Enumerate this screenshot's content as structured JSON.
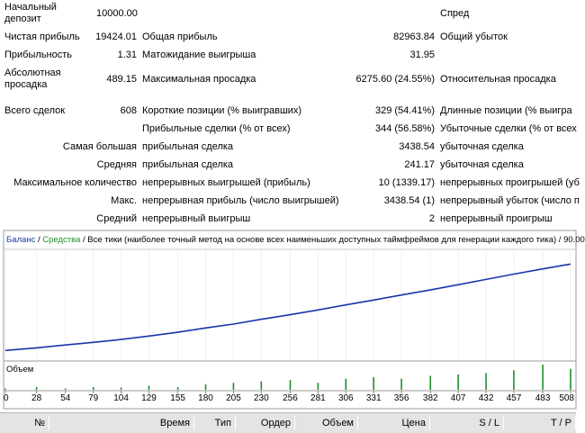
{
  "stats": {
    "initial_deposit": {
      "label_line1": "Начальный",
      "label_line2": "депозит",
      "value": "10000.00"
    },
    "spread": {
      "label": "Спред"
    },
    "net_profit": {
      "label": "Чистая прибыль",
      "value": "19424.01"
    },
    "gross_profit": {
      "label": "Общая прибыль",
      "value": "82963.84"
    },
    "gross_loss": {
      "label": "Общий убыток"
    },
    "profit_factor": {
      "label": "Прибыльность",
      "value": "1.31"
    },
    "expected_payoff": {
      "label": "Матожидание выигрыша",
      "value": "31.95"
    },
    "absolute_drawdown": {
      "label_line1": "Абсолютная",
      "label_line2": "просадка",
      "value": "489.15"
    },
    "maximal_drawdown": {
      "label": "Максимальная просадка",
      "value": "6275.60 (24.55%)"
    },
    "relative_drawdown": {
      "label": "Относительная просадка"
    },
    "total_trades": {
      "label": "Всего сделок",
      "value": "608"
    },
    "short_positions": {
      "label": "Короткие позиции (% выигравших)",
      "value": "329 (54.41%)"
    },
    "long_positions": {
      "label": "Длинные позиции (% выигра"
    },
    "profit_trades": {
      "label": "Прибыльные сделки (% от всех)",
      "value": "344 (56.58%)"
    },
    "loss_trades": {
      "label": "Убыточные сделки (% от всех"
    },
    "largest": {
      "label": "Самая большая",
      "sub": "прибыльная сделка",
      "value": "3438.54",
      "right": "убыточная сделка"
    },
    "average": {
      "label": "Средняя",
      "sub": "прибыльная сделка",
      "value": "241.17",
      "right": "убыточная сделка"
    },
    "max_consecutive": {
      "label": "Максимальное количество",
      "sub": "непрерывных выигрышей (прибыль)",
      "value": "10 (1339.17)",
      "right": "непрерывных проигрышей (уб"
    },
    "max_streak": {
      "label": "Макс.",
      "sub": "непрерывная прибыль (число выигрышей)",
      "value": "3438.54 (1)",
      "right": "непрерывный убыток (число п"
    },
    "average_streak": {
      "label": "Средний",
      "sub": "непрерывный выигрыш",
      "value": "2",
      "right": "непрерывный проигрыш"
    }
  },
  "graph": {
    "legend_balance": "Баланс",
    "legend_sep1": " / ",
    "legend_equity": "Средства",
    "legend_rest": " / Все тики (наиболее точный метод на основе всех наименьших доступных таймфреймов для генерации каждого тика) / 90.00",
    "volume_label": "Объем",
    "balance_color": "#1a35a8",
    "equity_color": "#1e8f2a"
  },
  "chart_data": {
    "type": "line",
    "series": [],
    "x_ticks": [
      "0",
      "28",
      "54",
      "79",
      "104",
      "129",
      "155",
      "180",
      "205",
      "230",
      "256",
      "281",
      "306",
      "331",
      "356",
      "382",
      "407",
      "432",
      "457",
      "483",
      "508"
    ],
    "xlim": [
      0,
      508
    ],
    "balance": {
      "x": [
        0,
        28,
        54,
        79,
        104,
        129,
        155,
        180,
        205,
        230,
        256,
        281,
        306,
        331,
        356,
        382,
        407,
        432,
        457,
        483,
        508
      ],
      "y": [
        10000,
        10550,
        11150,
        11700,
        12300,
        13000,
        13800,
        14700,
        15500,
        16500,
        17450,
        18450,
        19500,
        20500,
        21550,
        22600,
        23700,
        24800,
        25900,
        27000,
        28000
      ]
    },
    "balance_ylim": [
      8000,
      30500
    ],
    "volume": {
      "x": [
        0,
        28,
        54,
        79,
        104,
        129,
        155,
        180,
        205,
        230,
        256,
        281,
        306,
        331,
        356,
        382,
        407,
        432,
        457,
        483,
        508
      ],
      "y": [
        0.05,
        0.1,
        0.05,
        0.1,
        0.08,
        0.15,
        0.1,
        0.2,
        0.25,
        0.3,
        0.35,
        0.25,
        0.4,
        0.45,
        0.4,
        0.5,
        0.55,
        0.6,
        0.7,
        0.9,
        0.75
      ]
    }
  },
  "table": {
    "columns": [
      "№",
      "Время",
      "Тип",
      "Ордер",
      "Объем",
      "Цена",
      "S / L",
      "T / P"
    ]
  }
}
